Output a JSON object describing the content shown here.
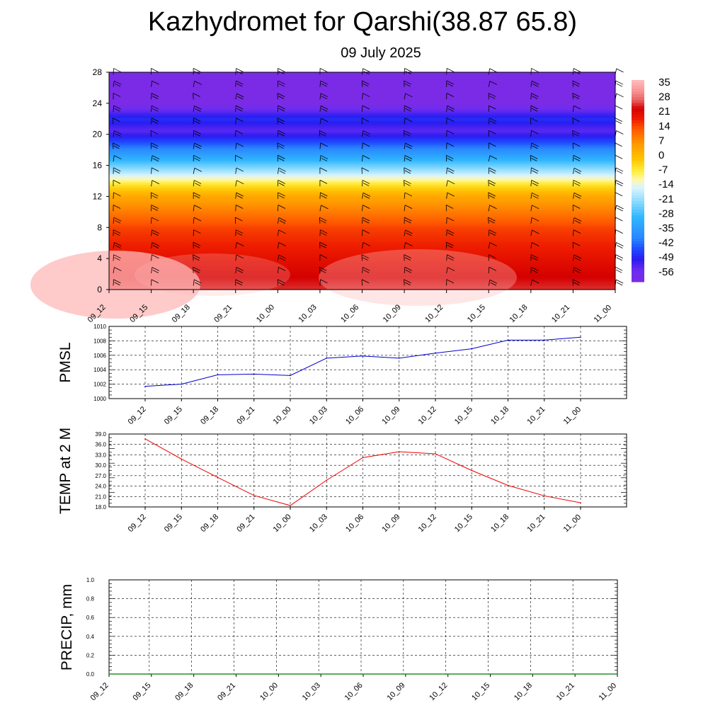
{
  "title": "Kazhydromet for Qarshi(38.87 65.8)",
  "subtitle": "09 July 2025",
  "chart_data": [
    {
      "type": "heatmap",
      "name": "cross-section",
      "x_categories": [
        "09_12",
        "09_15",
        "09_18",
        "09_21",
        "10_00",
        "10_03",
        "10_06",
        "10_09",
        "10_12",
        "10_15",
        "10_18",
        "10_21",
        "11_00"
      ],
      "y_ticks": [
        0,
        4,
        8,
        12,
        16,
        20,
        24,
        28
      ],
      "ylim": [
        0,
        28
      ],
      "legend_labels": [
        "35",
        "28",
        "21",
        "14",
        "7",
        "0",
        "-7",
        "-14",
        "-21",
        "-28",
        "-35",
        "-42",
        "-49",
        "-56"
      ],
      "profile": [
        [
          0,
          24
        ],
        [
          4,
          19
        ],
        [
          8,
          14
        ],
        [
          12,
          3
        ],
        [
          13.5,
          -6
        ],
        [
          15,
          -18
        ],
        [
          17,
          -32
        ],
        [
          19,
          -45
        ],
        [
          20.5,
          -54
        ],
        [
          22,
          -48
        ],
        [
          24,
          -60
        ],
        [
          28,
          -62
        ]
      ],
      "colors": {
        "warm_max": "#ffb8b8",
        "hot": "#d40000",
        "yellow": "#ffff80",
        "cold": "#7b2be6"
      },
      "wind_barbs": true
    },
    {
      "type": "line",
      "ylabel": "PMSL",
      "categories": [
        "09_12",
        "09_15",
        "09_18",
        "09_21",
        "10_00",
        "10_03",
        "10_06",
        "10_09",
        "10_12",
        "10_15",
        "10_18",
        "10_21",
        "11_00"
      ],
      "y_ticks": [
        "1000",
        "1002",
        "1004",
        "1006",
        "1008",
        "1010"
      ],
      "ylim": [
        1000,
        1010
      ],
      "values": [
        1001.7,
        1002.0,
        1003.3,
        1003.4,
        1003.2,
        1005.6,
        1005.9,
        1005.6,
        1006.3,
        1006.9,
        1008.1,
        1008.1,
        1008.5
      ],
      "color": "#0000cc",
      "grid": true
    },
    {
      "type": "line",
      "ylabel": "TEMP at 2 M",
      "categories": [
        "09_12",
        "09_15",
        "09_18",
        "09_21",
        "10_00",
        "10_03",
        "10_06",
        "10_09",
        "10_12",
        "10_15",
        "10_18",
        "10_21",
        "11_00"
      ],
      "y_ticks": [
        "18.0",
        "21.0",
        "24.0",
        "27.0",
        "30.0",
        "33.0",
        "36.0",
        "39.0"
      ],
      "ylim": [
        18,
        39
      ],
      "values": [
        37.6,
        31.8,
        26.5,
        21.3,
        18.4,
        25.7,
        32.2,
        33.9,
        33.3,
        28.5,
        24.2,
        21.2,
        19.2
      ],
      "color": "#ee0000",
      "grid": true
    },
    {
      "type": "line",
      "ylabel": "PRECIP, mm",
      "categories": [
        "09_12",
        "09_15",
        "09_18",
        "09_21",
        "10_00",
        "10_03",
        "10_06",
        "10_09",
        "10_12",
        "10_15",
        "10_18",
        "10_21",
        "11_00"
      ],
      "y_ticks": [
        "0.0",
        "0.2",
        "0.4",
        "0.6",
        "0.8",
        "1.0"
      ],
      "ylim": [
        0,
        1
      ],
      "values": [
        0,
        0,
        0,
        0,
        0,
        0,
        0,
        0,
        0,
        0,
        0,
        0,
        0
      ],
      "color": "#007700",
      "grid": true
    }
  ]
}
